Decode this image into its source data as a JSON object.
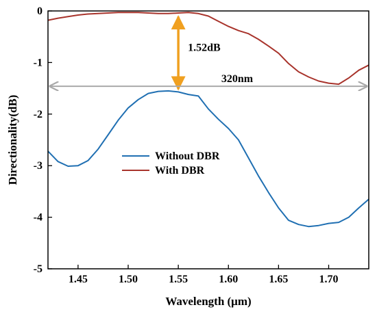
{
  "chart_data": {
    "type": "line",
    "xlabel": "Wavelength (μm)",
    "ylabel": "Directionality(dB)",
    "xlim": [
      1.42,
      1.74
    ],
    "ylim": [
      -5,
      0
    ],
    "xticks": [
      1.45,
      1.5,
      1.55,
      1.6,
      1.65,
      1.7
    ],
    "xtick_labels": [
      "1.45",
      "1.50",
      "1.55",
      "1.60",
      "1.65",
      "1.70"
    ],
    "yticks": [
      0,
      -1,
      -2,
      -3,
      -4,
      -5
    ],
    "ytick_labels": [
      "0",
      "-1",
      "-2",
      "-3",
      "-4",
      "-5"
    ],
    "grid": false,
    "legend_position": "center-left",
    "series": [
      {
        "name": "Without DBR",
        "color": "#1f6fb2",
        "x": [
          1.42,
          1.43,
          1.44,
          1.45,
          1.46,
          1.47,
          1.48,
          1.49,
          1.5,
          1.51,
          1.52,
          1.53,
          1.54,
          1.55,
          1.56,
          1.57,
          1.58,
          1.59,
          1.6,
          1.61,
          1.62,
          1.63,
          1.64,
          1.65,
          1.66,
          1.67,
          1.68,
          1.69,
          1.7,
          1.71,
          1.72,
          1.73,
          1.74
        ],
        "y": [
          -2.72,
          -2.92,
          -3.01,
          -3.0,
          -2.9,
          -2.68,
          -2.4,
          -2.12,
          -1.88,
          -1.72,
          -1.6,
          -1.56,
          -1.55,
          -1.57,
          -1.62,
          -1.65,
          -1.9,
          -2.1,
          -2.28,
          -2.5,
          -2.85,
          -3.2,
          -3.52,
          -3.82,
          -4.06,
          -4.14,
          -4.18,
          -4.16,
          -4.12,
          -4.1,
          -4.0,
          -3.82,
          -3.65
        ]
      },
      {
        "name": "With DBR",
        "color": "#a8332b",
        "x": [
          1.42,
          1.43,
          1.44,
          1.45,
          1.46,
          1.47,
          1.48,
          1.49,
          1.5,
          1.51,
          1.52,
          1.53,
          1.54,
          1.55,
          1.56,
          1.57,
          1.58,
          1.59,
          1.6,
          1.61,
          1.62,
          1.63,
          1.64,
          1.65,
          1.66,
          1.67,
          1.68,
          1.69,
          1.7,
          1.71,
          1.72,
          1.73,
          1.74
        ],
        "y": [
          -0.18,
          -0.14,
          -0.11,
          -0.08,
          -0.06,
          -0.05,
          -0.04,
          -0.03,
          -0.03,
          -0.03,
          -0.04,
          -0.05,
          -0.05,
          -0.04,
          -0.03,
          -0.05,
          -0.1,
          -0.2,
          -0.3,
          -0.38,
          -0.44,
          -0.55,
          -0.68,
          -0.82,
          -1.02,
          -1.18,
          -1.28,
          -1.36,
          -1.4,
          -1.42,
          -1.3,
          -1.15,
          -1.05
        ]
      }
    ],
    "annotations": [
      {
        "text": "1.52dB",
        "type": "vertical-arrow",
        "color": "#f0a020",
        "x": 1.55,
        "y_from": -0.03,
        "y_to": -1.57
      },
      {
        "text": "320nm",
        "type": "horizontal-double-arrow",
        "color": "#a9a9a9",
        "y": -1.46,
        "x_from": 1.42,
        "x_to": 1.74
      }
    ]
  }
}
